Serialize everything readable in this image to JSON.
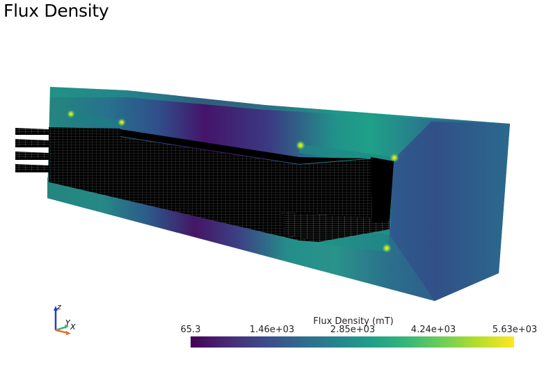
{
  "view": {
    "title": "Flux Density"
  },
  "axes_widget": {
    "z_label": "z",
    "y_label": "Y",
    "x_label": "X",
    "z_color": "#1f3fbf",
    "y_color": "#3fb07f",
    "x_color": "#e8702a"
  },
  "colorbar": {
    "title": "Flux Density (mT)",
    "colormap": "viridis",
    "ticks": [
      "65.3",
      "1.46e+03",
      "2.85e+03",
      "4.24e+03",
      "5.63e+03"
    ],
    "colors": [
      "#440154",
      "#482878",
      "#3e4989",
      "#31688e",
      "#26828e",
      "#1f9e89",
      "#35b779",
      "#6ece58",
      "#b5de2b",
      "#fde725"
    ]
  }
}
